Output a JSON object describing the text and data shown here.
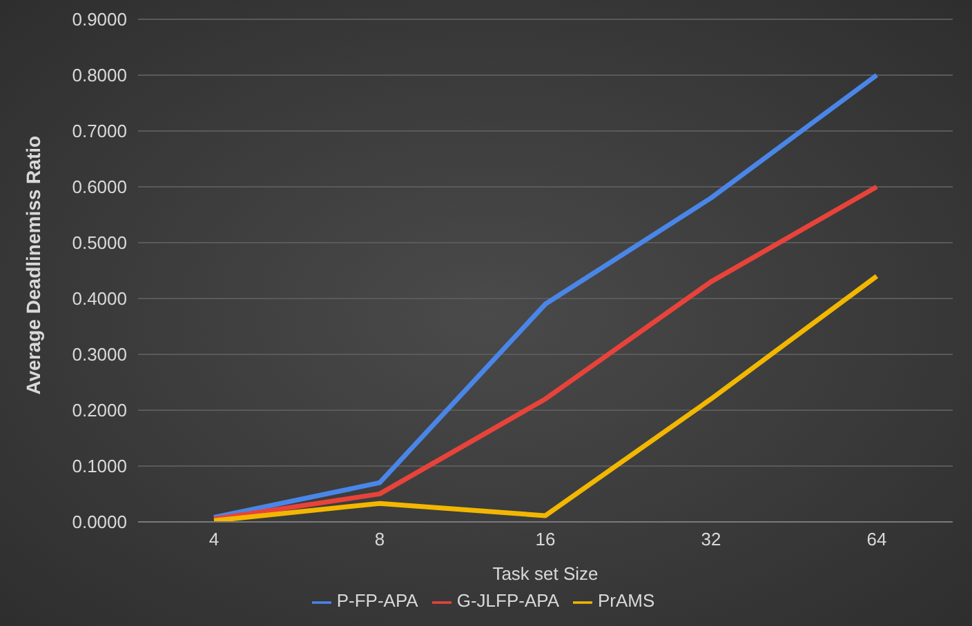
{
  "chart_data": {
    "type": "line",
    "xlabel": "Task set Size",
    "ylabel": "Average Deadlinemiss Ratio",
    "categories": [
      "4",
      "8",
      "16",
      "32",
      "64"
    ],
    "series": [
      {
        "name": "P-FP-APA",
        "color": "#4a86e8",
        "values": [
          0.008,
          0.07,
          0.39,
          0.58,
          0.8
        ]
      },
      {
        "name": "G-JLFP-APA",
        "color": "#e8433a",
        "values": [
          0.005,
          0.05,
          0.22,
          0.43,
          0.6
        ]
      },
      {
        "name": "PrAMS",
        "color": "#f2b700",
        "values": [
          0.002,
          0.033,
          0.011,
          0.22,
          0.44
        ]
      }
    ],
    "ylim": [
      0,
      0.9
    ],
    "yticks": [
      {
        "value": 0,
        "label": "0.0000"
      },
      {
        "value": 0.1,
        "label": "0.1000"
      },
      {
        "value": 0.2,
        "label": "0.2000"
      },
      {
        "value": 0.3,
        "label": "0.3000"
      },
      {
        "value": 0.4,
        "label": "0.4000"
      },
      {
        "value": 0.5,
        "label": "0.5000"
      },
      {
        "value": 0.6,
        "label": "0.6000"
      },
      {
        "value": 0.7,
        "label": "0.7000"
      },
      {
        "value": 0.8,
        "label": "0.8000"
      },
      {
        "value": 0.9,
        "label": "0.9000"
      }
    ],
    "grid": "y",
    "legend": "bottom",
    "marker": "none",
    "line_style": "solid"
  }
}
